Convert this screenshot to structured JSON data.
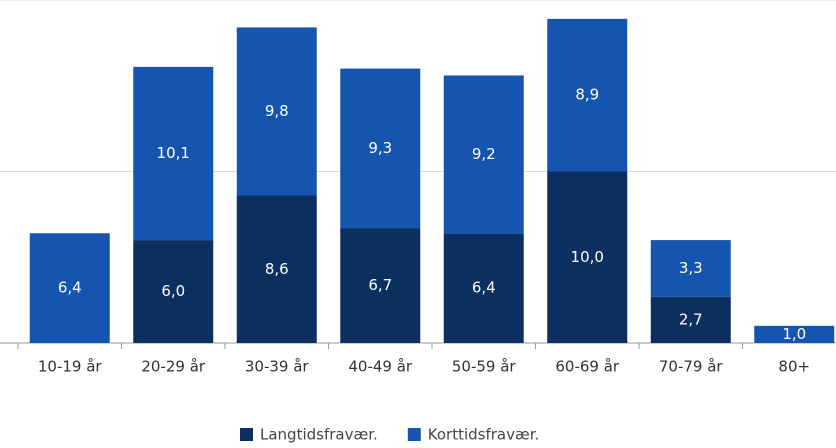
{
  "chart_data": {
    "type": "stacked_bar",
    "categories": [
      "10-19 år",
      "20-29 år",
      "30-39 år",
      "40-49 år",
      "50-59 år",
      "60-69 år",
      "70-79 år",
      "80+"
    ],
    "series": [
      {
        "name": "Langtidsfravær.",
        "color": "#0b2f5f",
        "values": [
          null,
          6.0,
          8.6,
          6.7,
          6.4,
          10.0,
          2.7,
          null
        ],
        "value_labels": [
          null,
          "6,0",
          "8,6",
          "6,7",
          "6,4",
          "10,0",
          "2,7",
          null
        ]
      },
      {
        "name": "Korttidsfravær.",
        "color": "#1555b0",
        "values": [
          6.4,
          10.1,
          9.8,
          9.3,
          9.2,
          8.9,
          3.3,
          1.0
        ],
        "value_labels": [
          "6,4",
          "10,1",
          "9,8",
          "9,3",
          "9,2",
          "8,9",
          "3,3",
          "1,0"
        ]
      }
    ],
    "ylim": [
      0,
      20
    ],
    "yticks": [
      0,
      10,
      20
    ],
    "grid": true,
    "legend": "bottom"
  }
}
